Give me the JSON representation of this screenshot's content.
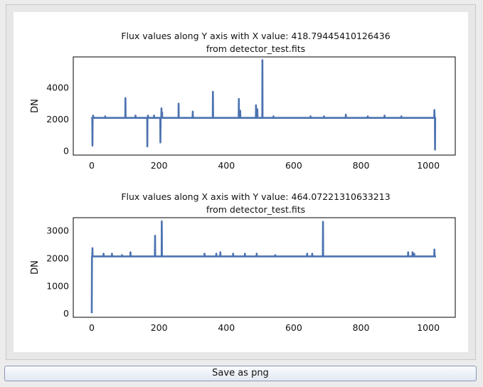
{
  "window": {
    "save_button_label": "Save as png"
  },
  "chart_data": [
    {
      "type": "line",
      "title": "Flux values along Y axis with X value: 418.79445410126436",
      "subtitle": "from detector_test.fits",
      "xlabel": "",
      "ylabel": "DN",
      "xlim": [
        -55,
        1080
      ],
      "ylim": [
        -300,
        5900
      ],
      "xticks": [
        0,
        200,
        400,
        600,
        800,
        1000
      ],
      "yticks": [
        0,
        2000,
        4000
      ],
      "grid": false,
      "color": "#4c72b0",
      "baseline": 2050,
      "x_max": 1023,
      "spikes": [
        {
          "x": 0,
          "y": 2100
        },
        {
          "x": 2,
          "y": 300
        },
        {
          "x": 4,
          "y": 2200
        },
        {
          "x": 40,
          "y": 2150
        },
        {
          "x": 100,
          "y": 3300
        },
        {
          "x": 130,
          "y": 2200
        },
        {
          "x": 165,
          "y": 250
        },
        {
          "x": 167,
          "y": 2200
        },
        {
          "x": 185,
          "y": 2200
        },
        {
          "x": 204,
          "y": 500
        },
        {
          "x": 207,
          "y": 2650
        },
        {
          "x": 209,
          "y": 2400
        },
        {
          "x": 258,
          "y": 2950
        },
        {
          "x": 300,
          "y": 2450
        },
        {
          "x": 360,
          "y": 3700
        },
        {
          "x": 437,
          "y": 3250
        },
        {
          "x": 441,
          "y": 2500
        },
        {
          "x": 488,
          "y": 2850
        },
        {
          "x": 492,
          "y": 2600
        },
        {
          "x": 507,
          "y": 5700
        },
        {
          "x": 540,
          "y": 2150
        },
        {
          "x": 650,
          "y": 2150
        },
        {
          "x": 690,
          "y": 2150
        },
        {
          "x": 755,
          "y": 2250
        },
        {
          "x": 820,
          "y": 2150
        },
        {
          "x": 870,
          "y": 2200
        },
        {
          "x": 920,
          "y": 2150
        },
        {
          "x": 1018,
          "y": 2550
        },
        {
          "x": 1020,
          "y": 50
        }
      ]
    },
    {
      "type": "line",
      "title": "Flux values along X axis with Y value:  464.07221310633213",
      "subtitle": "from detector_test.fits",
      "xlabel": "",
      "ylabel": "DN",
      "xlim": [
        -55,
        1080
      ],
      "ylim": [
        -150,
        3450
      ],
      "xticks": [
        0,
        200,
        400,
        600,
        800,
        1000
      ],
      "yticks": [
        0,
        1000,
        2000,
        3000
      ],
      "grid": false,
      "color": "#4c72b0",
      "baseline": 2050,
      "x_max": 1023,
      "spikes": [
        {
          "x": 0,
          "y": 0
        },
        {
          "x": 2,
          "y": 2350
        },
        {
          "x": 35,
          "y": 2150
        },
        {
          "x": 60,
          "y": 2150
        },
        {
          "x": 90,
          "y": 2100
        },
        {
          "x": 115,
          "y": 2200
        },
        {
          "x": 188,
          "y": 2800
        },
        {
          "x": 208,
          "y": 3320
        },
        {
          "x": 335,
          "y": 2150
        },
        {
          "x": 370,
          "y": 2150
        },
        {
          "x": 382,
          "y": 2200
        },
        {
          "x": 420,
          "y": 2150
        },
        {
          "x": 455,
          "y": 2150
        },
        {
          "x": 490,
          "y": 2150
        },
        {
          "x": 545,
          "y": 2100
        },
        {
          "x": 640,
          "y": 2150
        },
        {
          "x": 655,
          "y": 2150
        },
        {
          "x": 687,
          "y": 3300
        },
        {
          "x": 940,
          "y": 2200
        },
        {
          "x": 953,
          "y": 2200
        },
        {
          "x": 958,
          "y": 2150
        },
        {
          "x": 1018,
          "y": 2300
        }
      ]
    }
  ]
}
